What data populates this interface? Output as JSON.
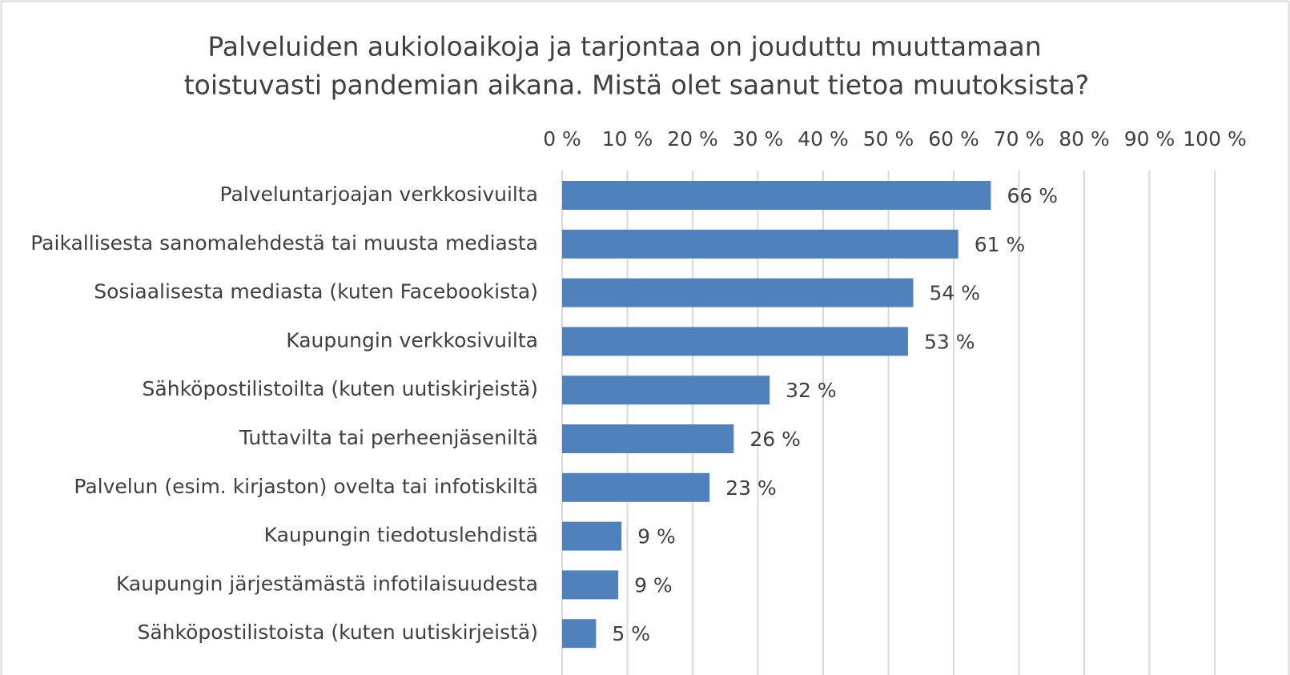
{
  "chart_data": {
    "type": "bar",
    "orientation": "horizontal",
    "title": [
      "Palveluiden aukioloaikoja ja tarjontaa on jouduttu muuttamaan",
      "toistuvasti pandemian aikana. Mistä olet saanut tietoa muutoksista?"
    ],
    "categories": [
      "Palveluntarjoajan verkkosivuilta",
      "Paikallisesta sanomalehdestä tai muusta mediasta",
      "Sosiaalisesta mediasta (kuten Facebookista)",
      "Kaupungin verkkosivuilta",
      "Sähköpostilistoilta (kuten uutiskirjeistä)",
      "Tuttavilta tai perheenjäseniltä",
      "Palvelun (esim. kirjaston) ovelta tai infotiskiltä",
      "Kaupungin tiedotuslehdistä",
      "Kaupungin järjestämästä infotilaisuudesta",
      "Sähköpostilistoista (kuten uutiskirjeistä)"
    ],
    "values": [
      65.7,
      60.7,
      53.8,
      53.0,
      31.8,
      26.3,
      22.6,
      9.1,
      8.6,
      5.2
    ],
    "value_labels": [
      "66 %",
      "61 %",
      "54 %",
      "53 %",
      "32 %",
      "26 %",
      "23 %",
      "9 %",
      "9 %",
      "5 %"
    ],
    "color": "#4f81bd",
    "xlim": [
      0,
      100
    ],
    "xticks": [
      {
        "value": 0,
        "label": "0 %"
      },
      {
        "value": 10,
        "label": "10 %"
      },
      {
        "value": 20,
        "label": "20 %"
      },
      {
        "value": 30,
        "label": "30 %"
      },
      {
        "value": 40,
        "label": "40 %"
      },
      {
        "value": 50,
        "label": "50 %"
      },
      {
        "value": 60,
        "label": "60 %"
      },
      {
        "value": 70,
        "label": "70 %"
      },
      {
        "value": 80,
        "label": "80 %"
      },
      {
        "value": 90,
        "label": "90 %"
      },
      {
        "value": 100,
        "label": "100 %"
      }
    ],
    "grid": true
  }
}
